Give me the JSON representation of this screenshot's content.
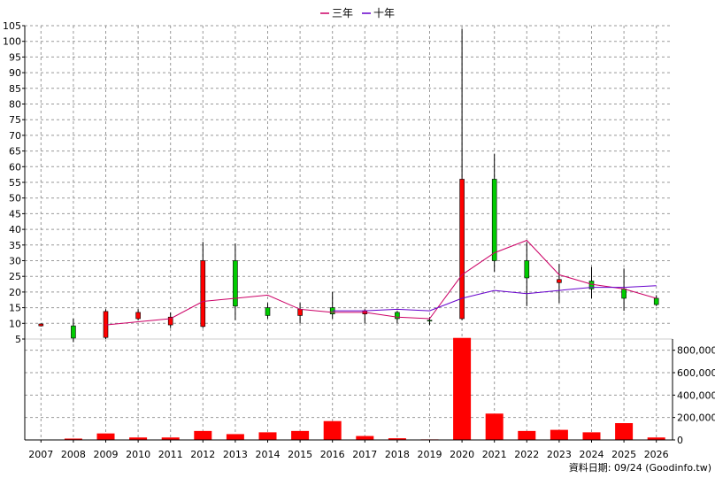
{
  "legend": {
    "items": [
      {
        "label": "三年",
        "color": "#cc0066"
      },
      {
        "label": "十年",
        "color": "#6600cc"
      }
    ]
  },
  "footer": {
    "text": "資料日期: 09/24  (Goodinfo.tw)"
  },
  "colors": {
    "up": "#ff0000",
    "down": "#00cc00",
    "volume": "#ff0000",
    "grid": "#999999",
    "axis": "#000000"
  },
  "chart_data": [
    {
      "type": "candlestick",
      "grid": true,
      "ylim": [
        5,
        105
      ],
      "yticks": [
        5,
        10,
        15,
        20,
        25,
        30,
        35,
        40,
        45,
        50,
        55,
        60,
        65,
        70,
        75,
        80,
        85,
        90,
        95,
        100,
        105
      ],
      "categories": [
        "2007",
        "2008",
        "2009",
        "2010",
        "2011",
        "2012",
        "2013",
        "2014",
        "2015",
        "2016",
        "2017",
        "2018",
        "2019",
        "2020",
        "2021",
        "2022",
        "2023",
        "2024",
        "2025",
        "2026"
      ],
      "ohlc": [
        {
          "open": 9.2,
          "close": 9.8,
          "high": 10.0,
          "low": 9.0
        },
        {
          "open": 9.2,
          "close": 5.3,
          "high": 11.5,
          "low": 4.0
        },
        {
          "open": 5.5,
          "close": 13.8,
          "high": 14.5,
          "low": 5.0
        },
        {
          "open": 11.5,
          "close": 13.5,
          "high": 14.5,
          "low": 11.0
        },
        {
          "open": 9.5,
          "close": 12.0,
          "high": 13.5,
          "low": 8.5
        },
        {
          "open": 9.0,
          "close": 30.0,
          "high": 36.0,
          "low": 8.5
        },
        {
          "open": 30.0,
          "close": 15.5,
          "high": 35.5,
          "low": 11.0
        },
        {
          "open": 15.0,
          "close": 12.5,
          "high": 16.5,
          "low": 11.5
        },
        {
          "open": 12.5,
          "close": 14.5,
          "high": 16.5,
          "low": 10.0
        },
        {
          "open": 15.0,
          "close": 13.0,
          "high": 20.0,
          "low": 11.5
        },
        {
          "open": 13.0,
          "close": 14.0,
          "high": 14.5,
          "low": 10.0
        },
        {
          "open": 13.5,
          "close": 11.5,
          "high": 14.0,
          "low": 10.0
        },
        {
          "open": 11.0,
          "close": 10.8,
          "high": 12.0,
          "low": 9.5
        },
        {
          "open": 11.5,
          "close": 56.0,
          "high": 104.0,
          "low": 11.0
        },
        {
          "open": 56.0,
          "close": 30.0,
          "high": 64.0,
          "low": 26.5
        },
        {
          "open": 30.0,
          "close": 24.5,
          "high": 36.0,
          "low": 15.5
        },
        {
          "open": 23.0,
          "close": 24.0,
          "high": 29.0,
          "low": 16.5
        },
        {
          "open": 23.5,
          "close": 21.0,
          "high": 28.0,
          "low": 18.0
        },
        {
          "open": 21.0,
          "close": 18.0,
          "high": 27.5,
          "low": 14.0
        },
        {
          "open": 18.0,
          "close": 16.0,
          "high": 19.0,
          "low": 15.5
        }
      ],
      "series": [
        {
          "name": "三年",
          "values": [
            null,
            null,
            9.5,
            10.5,
            11.5,
            17.0,
            18.0,
            19.0,
            14.5,
            13.5,
            13.5,
            12.0,
            11.5,
            25.5,
            32.5,
            36.5,
            25.5,
            22.5,
            21.0,
            18.0
          ]
        },
        {
          "name": "十年",
          "values": [
            null,
            null,
            null,
            null,
            null,
            null,
            null,
            null,
            null,
            14.0,
            14.0,
            14.5,
            14.0,
            18.0,
            20.5,
            19.5,
            20.5,
            21.5,
            21.5,
            22.0
          ]
        }
      ]
    },
    {
      "type": "bar",
      "ylim": [
        0,
        900000
      ],
      "yticks": [
        0,
        200000,
        400000,
        600000,
        800000
      ],
      "ytick_labels": [
        "0",
        "200,000",
        "400,000",
        "600,000",
        "800,000"
      ],
      "categories": [
        "2007",
        "2008",
        "2009",
        "2010",
        "2011",
        "2012",
        "2013",
        "2014",
        "2015",
        "2016",
        "2017",
        "2018",
        "2019",
        "2020",
        "2021",
        "2022",
        "2023",
        "2024",
        "2025",
        "2026"
      ],
      "values": [
        0,
        12000,
        58000,
        22000,
        22000,
        80000,
        52000,
        68000,
        80000,
        168000,
        35000,
        15000,
        5000,
        910000,
        235000,
        80000,
        90000,
        68000,
        150000,
        22000
      ]
    }
  ]
}
